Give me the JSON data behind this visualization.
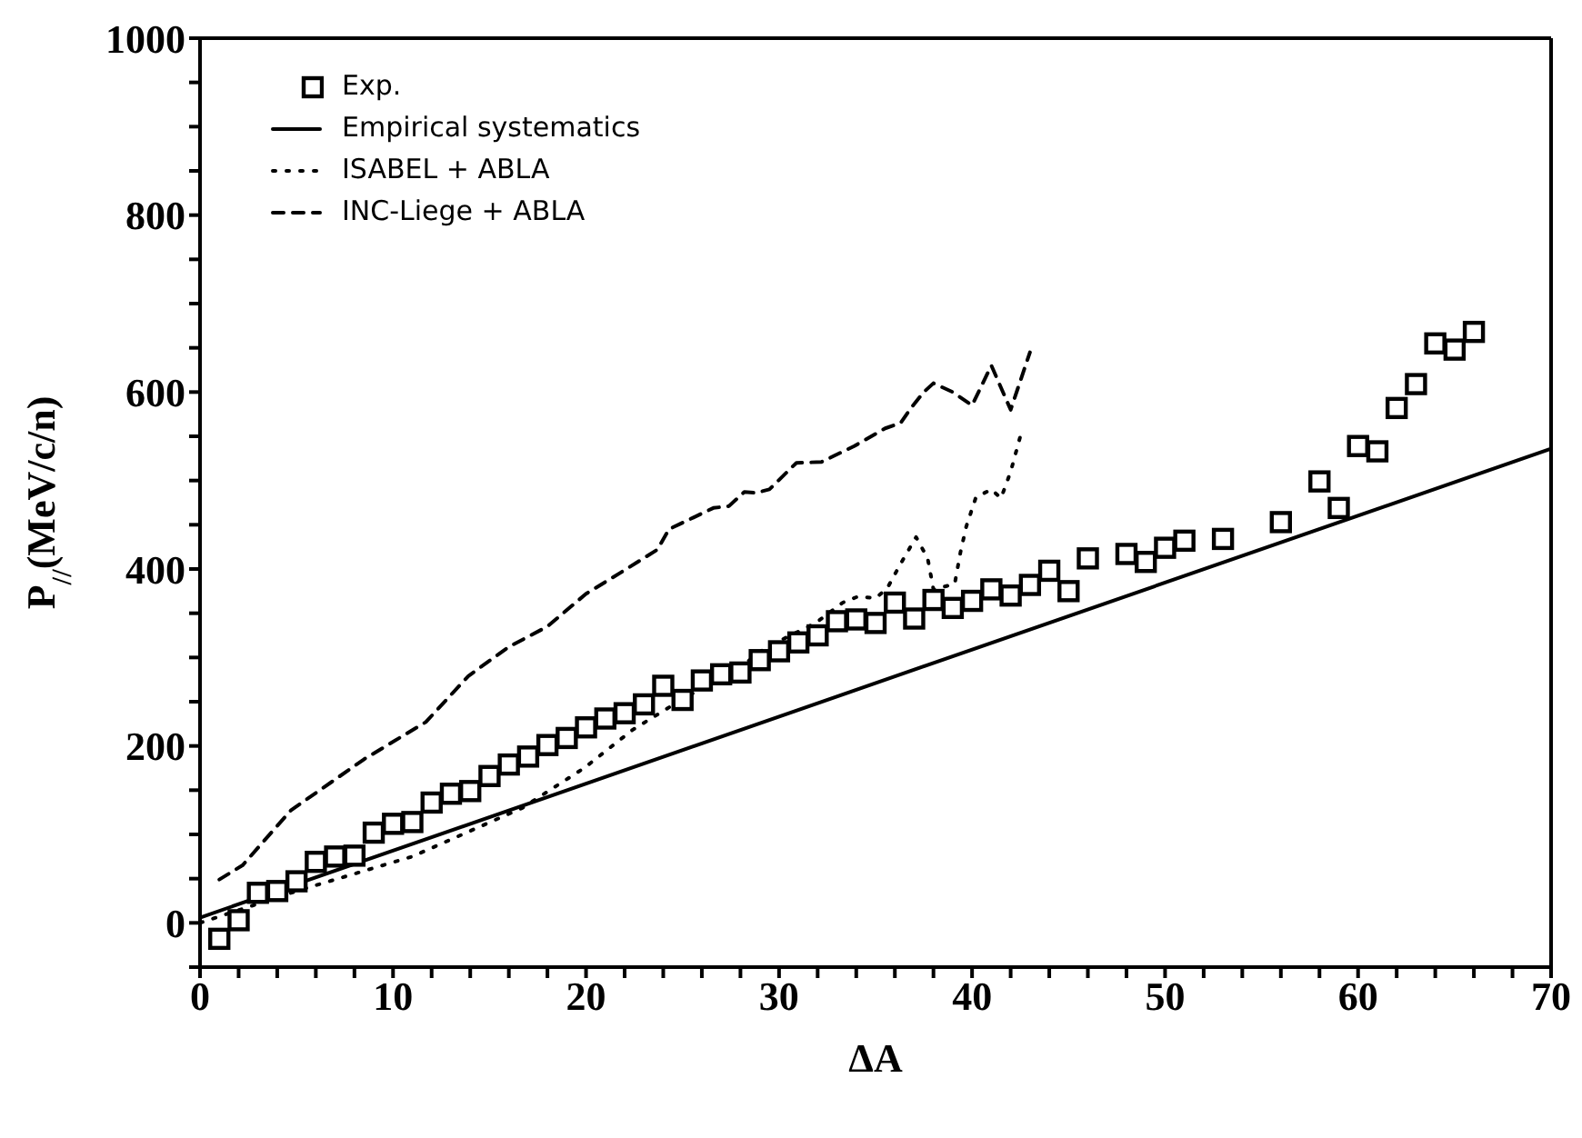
{
  "chart_data": {
    "type": "scatter",
    "xlabel": "ΔA",
    "ylabel": "P$_{//}$(MeV/c/n)",
    "xlim": [
      0,
      70
    ],
    "ylim": [
      -50,
      1000
    ],
    "xticks": [
      0,
      {
        "value": 2,
        "label": null
      },
      {
        "value": 4,
        "label": null
      },
      {
        "value": 6,
        "label": null
      },
      {
        "value": 8,
        "label": null
      },
      10,
      {
        "value": 12,
        "label": null
      },
      {
        "value": 14,
        "label": null
      },
      {
        "value": 16,
        "label": null
      },
      {
        "value": 18,
        "label": null
      },
      20,
      {
        "value": 22,
        "label": null
      },
      {
        "value": 24,
        "label": null
      },
      {
        "value": 26,
        "label": null
      },
      {
        "value": 28,
        "label": null
      },
      30,
      {
        "value": 32,
        "label": null
      },
      {
        "value": 34,
        "label": null
      },
      {
        "value": 36,
        "label": null
      },
      {
        "value": 38,
        "label": null
      },
      40,
      {
        "value": 42,
        "label": null
      },
      {
        "value": 44,
        "label": null
      },
      {
        "value": 46,
        "label": null
      },
      {
        "value": 48,
        "label": null
      },
      50,
      {
        "value": 52,
        "label": null
      },
      {
        "value": 54,
        "label": null
      },
      {
        "value": 56,
        "label": null
      },
      {
        "value": 58,
        "label": null
      },
      60,
      {
        "value": 62,
        "label": null
      },
      {
        "value": 64,
        "label": null
      },
      {
        "value": 66,
        "label": null
      },
      {
        "value": 68,
        "label": null
      },
      70
    ],
    "yticks": [
      {
        "value": -50,
        "label": null
      },
      0,
      {
        "value": 50,
        "label": null
      },
      {
        "value": 100,
        "label": null
      },
      {
        "value": 150,
        "label": null
      },
      200,
      {
        "value": 250,
        "label": null
      },
      {
        "value": 300,
        "label": null
      },
      {
        "value": 350,
        "label": null
      },
      400,
      {
        "value": 450,
        "label": null
      },
      {
        "value": 500,
        "label": null
      },
      {
        "value": 550,
        "label": null
      },
      600,
      {
        "value": 650,
        "label": null
      },
      {
        "value": 700,
        "label": null
      },
      {
        "value": 750,
        "label": null
      },
      800,
      {
        "value": 850,
        "label": null
      },
      {
        "value": 900,
        "label": null
      },
      {
        "value": 950,
        "label": null
      },
      1000
    ],
    "legend": "top left",
    "series": [
      {
        "name": "Exp.",
        "marker": "square",
        "color": "#000000",
        "x": [
          1,
          2,
          3,
          4,
          5,
          6,
          7,
          8,
          9,
          10,
          11,
          12,
          13,
          14,
          15,
          16,
          17,
          18,
          19,
          20,
          21,
          22,
          23,
          24,
          25,
          26,
          27,
          28,
          29,
          30,
          31,
          32,
          33,
          34,
          35,
          36,
          37,
          38,
          39,
          40,
          41,
          42,
          43,
          44,
          45,
          46,
          48,
          49,
          50,
          51,
          53,
          56,
          58,
          59,
          60,
          61,
          62,
          63,
          64,
          65,
          66
        ],
        "values": [
          -18,
          3,
          34,
          36,
          47,
          69,
          75,
          76,
          102,
          112,
          114,
          136,
          146,
          149,
          166,
          179,
          188,
          201,
          209,
          221,
          231,
          237,
          247,
          268,
          252,
          274,
          281,
          283,
          297,
          307,
          317,
          325,
          341,
          343,
          339,
          362,
          344,
          365,
          356,
          364,
          377,
          370,
          382,
          398,
          375,
          412,
          417,
          408,
          424,
          432,
          434,
          453,
          499,
          469,
          539,
          533,
          582,
          609,
          655,
          648,
          668
        ]
      },
      {
        "name": "Empirical systematics",
        "type": "line",
        "marker": "none",
        "line_style": "solid",
        "color": "#000000",
        "x": [
          0,
          70
        ],
        "values": [
          6,
          536
        ]
      },
      {
        "name": "ISABEL + ABLA",
        "type": "line",
        "marker": "none",
        "line_style": "dotted",
        "color": "#000000",
        "x": [
          0,
          5,
          11,
          16.7,
          19.9,
          22.4,
          25.3,
          27.4,
          29.3,
          31.9,
          33.3,
          34.1,
          35,
          35.6,
          36.3,
          37.1,
          37.7,
          38,
          39.1,
          39.4,
          39.7,
          40.2,
          41,
          41.5,
          42,
          42.5
        ],
        "values": [
          0,
          36,
          75,
          130,
          175,
          218,
          257,
          279,
          311,
          339,
          362,
          369,
          367,
          378,
          406,
          436,
          412,
          377,
          383,
          419,
          448,
          481,
          490,
          480,
          510,
          550
        ]
      },
      {
        "name": "INC-Liege + ABLA",
        "type": "line",
        "marker": "none",
        "line_style": "dashed",
        "color": "#000000",
        "x": [
          1,
          2.2,
          4.7,
          8.5,
          11.7,
          13.9,
          16,
          18,
          20,
          21.8,
          23.7,
          24.3,
          26.6,
          27.4,
          28.2,
          28.8,
          29.5,
          30.9,
          32.2,
          33.9,
          35.5,
          36.3,
          36.8,
          37.5,
          38,
          39,
          40,
          41,
          42,
          43
        ],
        "values": [
          49,
          65,
          127,
          185,
          227,
          279,
          312,
          335,
          372,
          396,
          422,
          445,
          469,
          471,
          487,
          486,
          490,
          520,
          521,
          539,
          559,
          565,
          581,
          600,
          610,
          600,
          585,
          630,
          580,
          645
        ]
      }
    ]
  }
}
